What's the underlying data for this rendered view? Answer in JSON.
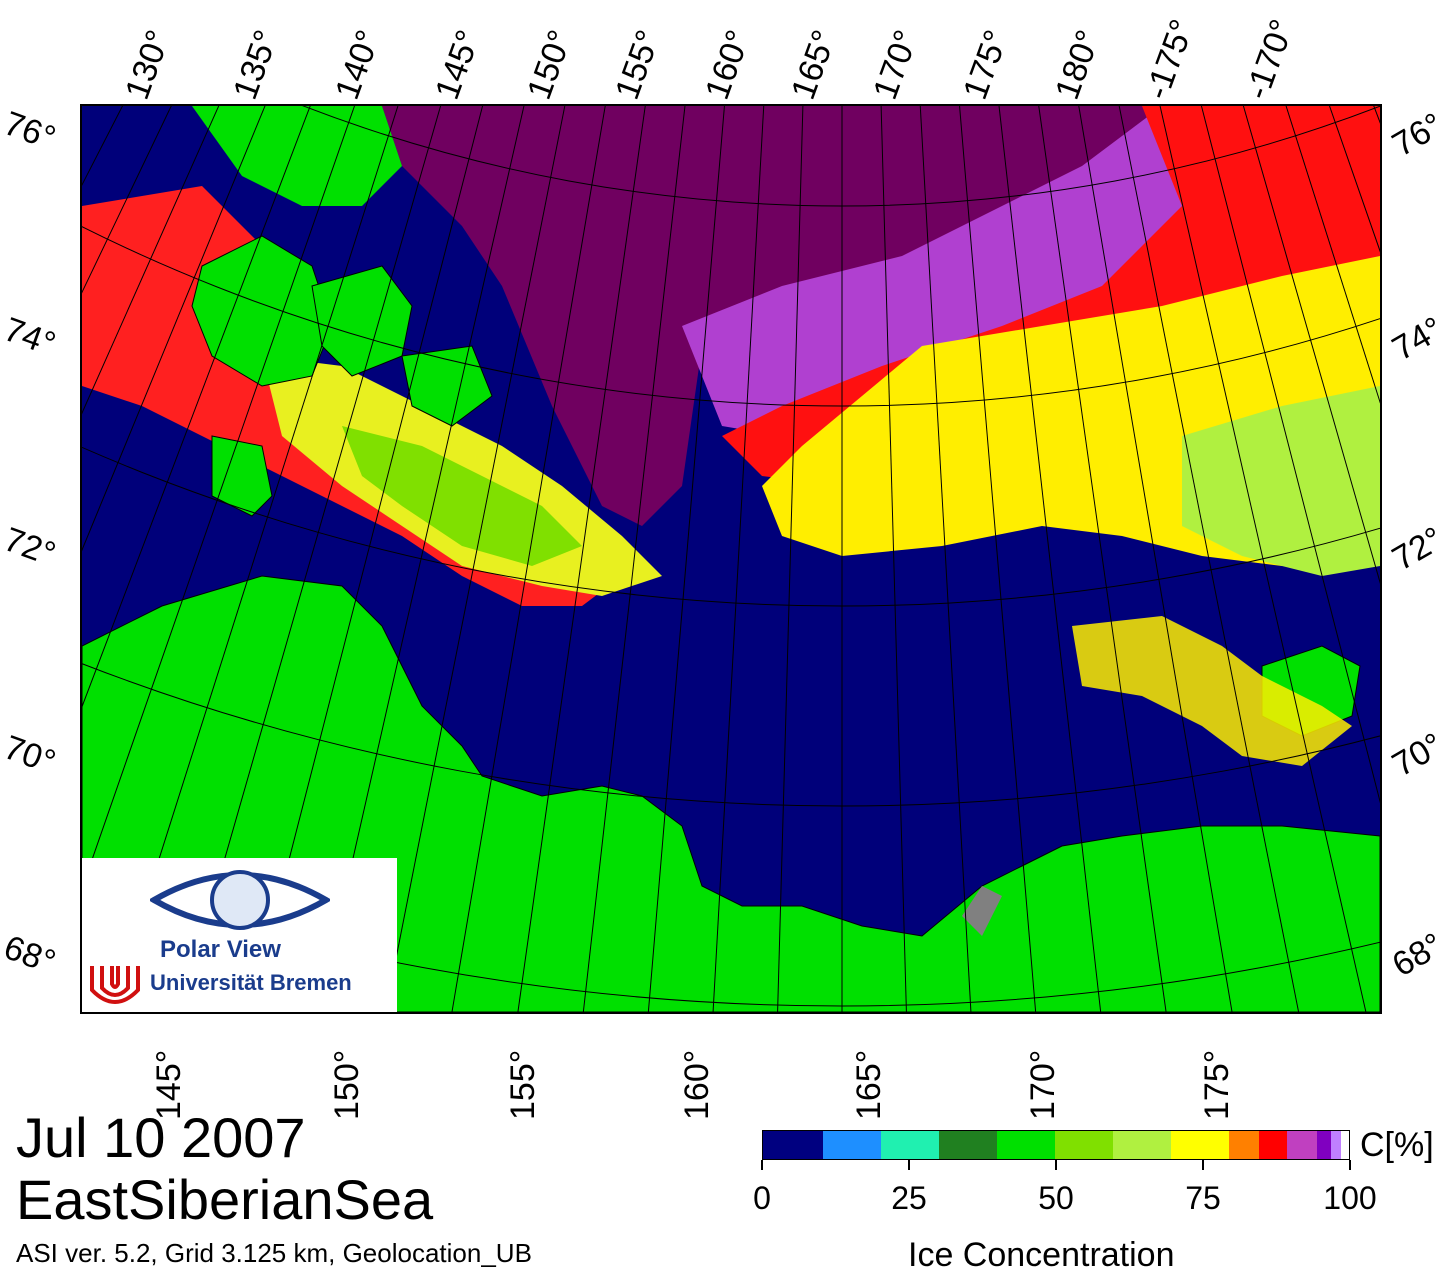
{
  "title": {
    "date": "Jul 10 2007",
    "region": "EastSiberianSea"
  },
  "subtitle": "ASI ver. 5.2,  Grid 3.125 km, Geolocation_UB",
  "logo": {
    "name": "Polar View",
    "institution": "Universität Bremen"
  },
  "grid_labels": {
    "top_lon": [
      "130°",
      "135°",
      "140°",
      "145°",
      "150°",
      "155°",
      "160°",
      "165°",
      "170°",
      "175°",
      "180°",
      "-175°",
      "-170°"
    ],
    "bottom_lon": [
      "145°",
      "150°",
      "155°",
      "160°",
      "165°",
      "170°",
      "175°"
    ],
    "left_lat": [
      "76°",
      "74°",
      "72°",
      "70°",
      "68°"
    ],
    "right_lat": [
      "76°",
      "74°",
      "72°",
      "70°",
      "68°"
    ]
  },
  "colorbar": {
    "title": "Ice Concentration",
    "unit": "C[%]",
    "tick_labels": [
      "0",
      "25",
      "50",
      "75",
      "100"
    ],
    "range": [
      0,
      100
    ],
    "colors": [
      "#000080",
      "#1e8fff",
      "#20f0b0",
      "#208020",
      "#00e000",
      "#80e000",
      "#b0f040",
      "#ffff00",
      "#ff8000",
      "#ff0000",
      "#c040c0",
      "#8000c0",
      "#c080ff"
    ]
  },
  "legend_colors": {
    "land": "#00e000",
    "coast_gray": "#808080",
    "open_water": "#00007a",
    "pole_hole": "#700060"
  }
}
